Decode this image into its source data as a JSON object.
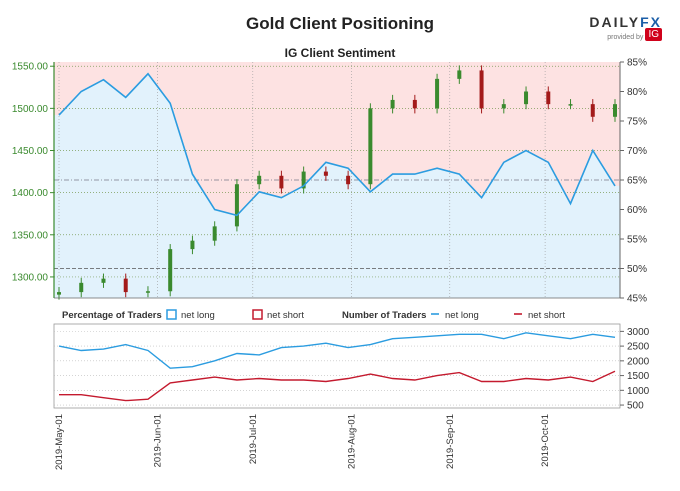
{
  "header": {
    "title": "Gold Client Positioning",
    "subtitle": "IG Client Sentiment",
    "brand": {
      "name": "DAILY",
      "fx": "FX",
      "provided_by": "provided by",
      "ig": "IG"
    }
  },
  "colors": {
    "net_long": "#2b9ce0",
    "net_short": "#c41a2e",
    "long_fill": "#e2f2fc",
    "short_fill": "#fde2e2",
    "candle_up": "#3a8a2e",
    "candle_down": "#a31a1a",
    "price_axis": "#3a8a2e",
    "grid": "#7a9a55"
  },
  "chart_data": [
    {
      "type": "line",
      "name": "price-and-sentiment",
      "x": [
        "2019-05-01",
        "2019-05-08",
        "2019-05-15",
        "2019-05-22",
        "2019-05-29",
        "2019-06-05",
        "2019-06-12",
        "2019-06-19",
        "2019-06-26",
        "2019-07-03",
        "2019-07-10",
        "2019-07-17",
        "2019-07-24",
        "2019-07-31",
        "2019-08-07",
        "2019-08-14",
        "2019-08-21",
        "2019-08-28",
        "2019-09-04",
        "2019-09-11",
        "2019-09-18",
        "2019-09-25",
        "2019-10-02",
        "2019-10-09",
        "2019-10-16",
        "2019-10-23"
      ],
      "price_close": [
        1282,
        1293,
        1298,
        1282,
        1283,
        1333,
        1343,
        1360,
        1410,
        1420,
        1405,
        1425,
        1420,
        1410,
        1500,
        1510,
        1500,
        1535,
        1545,
        1500,
        1505,
        1520,
        1505,
        1505,
        1490,
        1505
      ],
      "sentiment_long_pct": [
        76,
        80,
        82,
        79,
        83,
        78,
        66,
        60,
        59,
        63,
        62,
        64,
        68,
        67,
        63,
        66,
        66,
        67,
        66,
        62,
        68,
        70,
        68,
        61,
        70,
        64
      ],
      "series": [
        {
          "name": "net long"
        },
        {
          "name": "net short"
        }
      ],
      "y_price_ticks": [
        "1300.00",
        "1350.00",
        "1400.00",
        "1450.00",
        "1500.00",
        "1550.00"
      ],
      "y_price_range": [
        1275,
        1555
      ],
      "y_pct_ticks": [
        "45%",
        "50%",
        "55%",
        "60%",
        "65%",
        "70%",
        "75%",
        "80%",
        "85%"
      ],
      "y_pct_range": [
        45,
        85
      ]
    },
    {
      "type": "line",
      "name": "number-of-traders",
      "x": [
        "2019-05-01",
        "2019-05-08",
        "2019-05-15",
        "2019-05-22",
        "2019-05-29",
        "2019-06-05",
        "2019-06-12",
        "2019-06-19",
        "2019-06-26",
        "2019-07-03",
        "2019-07-10",
        "2019-07-17",
        "2019-07-24",
        "2019-07-31",
        "2019-08-07",
        "2019-08-14",
        "2019-08-21",
        "2019-08-28",
        "2019-09-04",
        "2019-09-11",
        "2019-09-18",
        "2019-09-25",
        "2019-10-02",
        "2019-10-09",
        "2019-10-16",
        "2019-10-23"
      ],
      "series": [
        {
          "name": "net long",
          "values": [
            2500,
            2350,
            2400,
            2550,
            2350,
            1750,
            1800,
            2000,
            2250,
            2200,
            2450,
            2500,
            2600,
            2450,
            2550,
            2750,
            2800,
            2850,
            2900,
            2900,
            2750,
            2950,
            2850,
            2750,
            2900,
            2800
          ]
        },
        {
          "name": "net short",
          "values": [
            850,
            850,
            750,
            650,
            700,
            1250,
            1350,
            1450,
            1350,
            1400,
            1350,
            1350,
            1300,
            1400,
            1550,
            1400,
            1350,
            1500,
            1600,
            1300,
            1300,
            1400,
            1350,
            1450,
            1300,
            1650
          ]
        }
      ],
      "y_ticks": [
        "500",
        "1000",
        "1500",
        "2000",
        "2500",
        "3000"
      ],
      "y_range": [
        400,
        3250
      ],
      "legend": {
        "pct_title": "Percentage of Traders",
        "pct_long": "net long",
        "pct_short": "net short",
        "num_title": "Number of Traders",
        "num_long": "net long",
        "num_short": "net short"
      }
    }
  ],
  "x_tick_labels": [
    "2019-May-01",
    "2019-Jun-01",
    "2019-Jul-01",
    "2019-Aug-01",
    "2019-Sep-01",
    "2019-Oct-01"
  ]
}
